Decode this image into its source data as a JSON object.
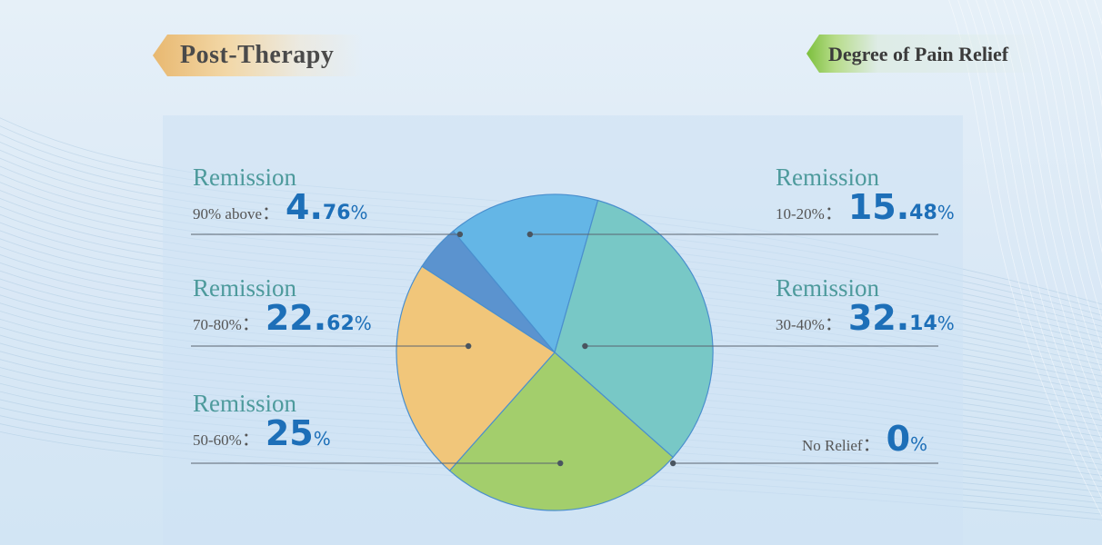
{
  "header": {
    "left_tag": "Post-Therapy",
    "right_tag": "Degree of Pain Relief"
  },
  "colors": {
    "slice_90_above": "#5b93cf",
    "slice_10_20": "#64b6e6",
    "slice_30_40": "#78c8c6",
    "slice_50_60": "#a3ce6c",
    "slice_70_80": "#f1c67a",
    "label_head": "#4d9a9c",
    "value_blue": "#1d6fb8"
  },
  "chart_data": {
    "type": "pie",
    "title": "Degree of Pain Relief",
    "slices": [
      {
        "label": "Remission 90% above",
        "value": 4.76,
        "int": "4.",
        "dec": "76",
        "head": "Remission",
        "cat": "90% above",
        "color": "#5b93cf"
      },
      {
        "label": "Remission 10-20%",
        "value": 15.48,
        "int": "15.",
        "dec": "48",
        "head": "Remission",
        "cat": "10-20%",
        "color": "#64b6e6"
      },
      {
        "label": "Remission 30-40%",
        "value": 32.14,
        "int": "32.",
        "dec": "14",
        "head": "Remission",
        "cat": "30-40%",
        "color": "#78c8c6"
      },
      {
        "label": "No Relief",
        "value": 0,
        "int": "0",
        "dec": "",
        "head": "",
        "cat": "No Relief",
        "color": "#78c8c6"
      },
      {
        "label": "Remission 50-60%",
        "value": 25,
        "int": "25",
        "dec": "",
        "head": "Remission",
        "cat": "50-60%",
        "color": "#a3ce6c"
      },
      {
        "label": "Remission 70-80%",
        "value": 22.62,
        "int": "22.",
        "dec": "62",
        "head": "Remission",
        "cat": "70-80%",
        "color": "#f1c67a"
      }
    ],
    "colon": "：",
    "percent": "%"
  }
}
